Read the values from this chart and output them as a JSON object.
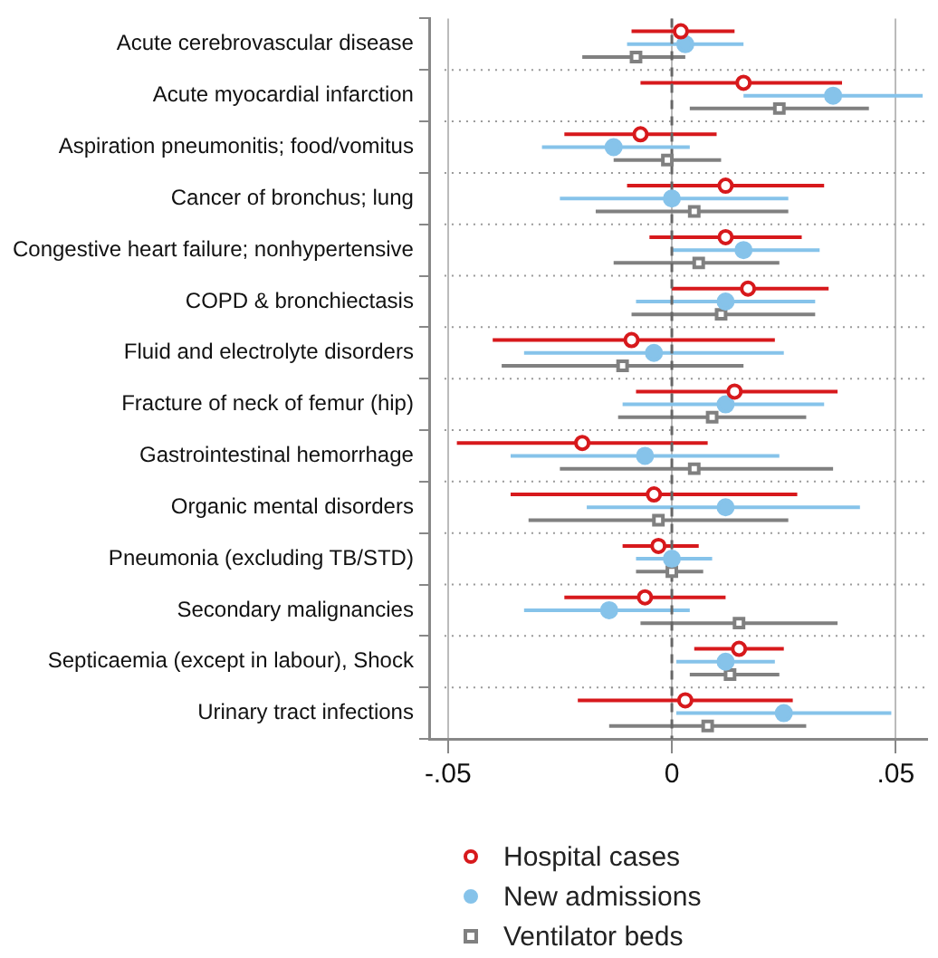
{
  "chart_data": {
    "type": "scatter",
    "orientation": "horizontal",
    "categories": [
      "Acute cerebrovascular disease",
      "Acute myocardial infarction",
      "Aspiration pneumonitis; food/vomitus",
      "Cancer of bronchus; lung",
      "Congestive heart failure; nonhypertensive",
      "COPD & bronchiectasis",
      "Fluid and electrolyte disorders",
      "Fracture of neck of femur (hip)",
      "Gastrointestinal hemorrhage",
      "Organic mental disorders",
      "Pneumonia (excluding TB/STD)",
      "Secondary malignancies",
      "Septicaemia (except in labour), Shock",
      "Urinary tract infections"
    ],
    "series": [
      {
        "name": "Hospital cases",
        "color": "#d7191c",
        "marker": "circle",
        "values": [
          0.002,
          0.016,
          -0.007,
          0.012,
          0.012,
          0.017,
          -0.009,
          0.014,
          -0.02,
          -0.004,
          -0.003,
          -0.006,
          0.015,
          0.003
        ],
        "errors": [
          [
            -0.009,
            0.014
          ],
          [
            -0.007,
            0.038
          ],
          [
            -0.024,
            0.01
          ],
          [
            -0.01,
            0.034
          ],
          [
            -0.005,
            0.029
          ],
          [
            0.0,
            0.035
          ],
          [
            -0.04,
            0.023
          ],
          [
            -0.008,
            0.037
          ],
          [
            -0.048,
            0.008
          ],
          [
            -0.036,
            0.028
          ],
          [
            -0.011,
            0.006
          ],
          [
            -0.024,
            0.012
          ],
          [
            0.005,
            0.025
          ],
          [
            -0.021,
            0.027
          ]
        ]
      },
      {
        "name": "New admissions",
        "color": "#86c3ea",
        "marker": "circle",
        "values": [
          0.003,
          0.036,
          -0.013,
          0.0,
          0.016,
          0.012,
          -0.004,
          0.012,
          -0.006,
          0.012,
          0.0,
          -0.014,
          0.012,
          0.025
        ],
        "errors": [
          [
            -0.01,
            0.016
          ],
          [
            0.016,
            0.056
          ],
          [
            -0.029,
            0.004
          ],
          [
            -0.025,
            0.026
          ],
          [
            0.0,
            0.033
          ],
          [
            -0.008,
            0.032
          ],
          [
            -0.033,
            0.025
          ],
          [
            -0.011,
            0.034
          ],
          [
            -0.036,
            0.024
          ],
          [
            -0.019,
            0.042
          ],
          [
            -0.008,
            0.009
          ],
          [
            -0.033,
            0.004
          ],
          [
            0.001,
            0.023
          ],
          [
            0.001,
            0.049
          ]
        ]
      },
      {
        "name": "Ventilator beds",
        "color": "#808080",
        "marker": "square",
        "values": [
          -0.008,
          0.024,
          -0.001,
          0.005,
          0.006,
          0.011,
          -0.011,
          0.009,
          0.005,
          -0.003,
          0.0,
          0.015,
          0.013,
          0.008
        ],
        "errors": [
          [
            -0.02,
            0.003
          ],
          [
            0.004,
            0.044
          ],
          [
            -0.013,
            0.011
          ],
          [
            -0.017,
            0.026
          ],
          [
            -0.013,
            0.024
          ],
          [
            -0.009,
            0.032
          ],
          [
            -0.038,
            0.016
          ],
          [
            -0.012,
            0.03
          ],
          [
            -0.025,
            0.036
          ],
          [
            -0.032,
            0.026
          ],
          [
            -0.008,
            0.007
          ],
          [
            -0.007,
            0.037
          ],
          [
            0.004,
            0.024
          ],
          [
            -0.014,
            0.03
          ]
        ]
      }
    ],
    "xlim": [
      -0.054,
      0.057
    ],
    "xticks": [
      {
        "value": -0.05,
        "label": "-.05"
      },
      {
        "value": 0,
        "label": "0"
      },
      {
        "value": 0.05,
        "label": ".05"
      }
    ],
    "ref_lines": [
      {
        "axis": "x",
        "value": 0,
        "color": "#666666",
        "line_style": "dashed"
      }
    ],
    "grid": true,
    "legend": "bottom"
  }
}
